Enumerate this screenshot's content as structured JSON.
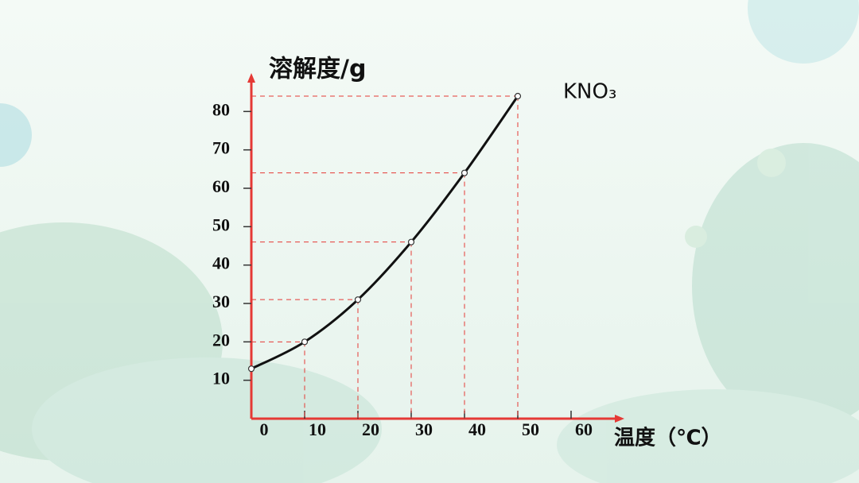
{
  "chart_data": {
    "type": "line",
    "y_label": "溶解度/g",
    "x_label": "温度（℃）",
    "x": [
      0,
      10,
      20,
      30,
      40,
      50
    ],
    "series": [
      {
        "name": "KNO₃",
        "color": "#111111",
        "values": [
          13,
          20,
          31,
          46,
          64,
          84
        ]
      }
    ],
    "xlim": [
      0,
      70
    ],
    "ylim": [
      0,
      90
    ],
    "xticks": [
      0,
      10,
      20,
      30,
      40,
      50,
      60
    ],
    "yticks": [
      10,
      20,
      30,
      40,
      50,
      60,
      70,
      80
    ],
    "guide_color": "#e53935",
    "axis_color": "#e53935"
  }
}
